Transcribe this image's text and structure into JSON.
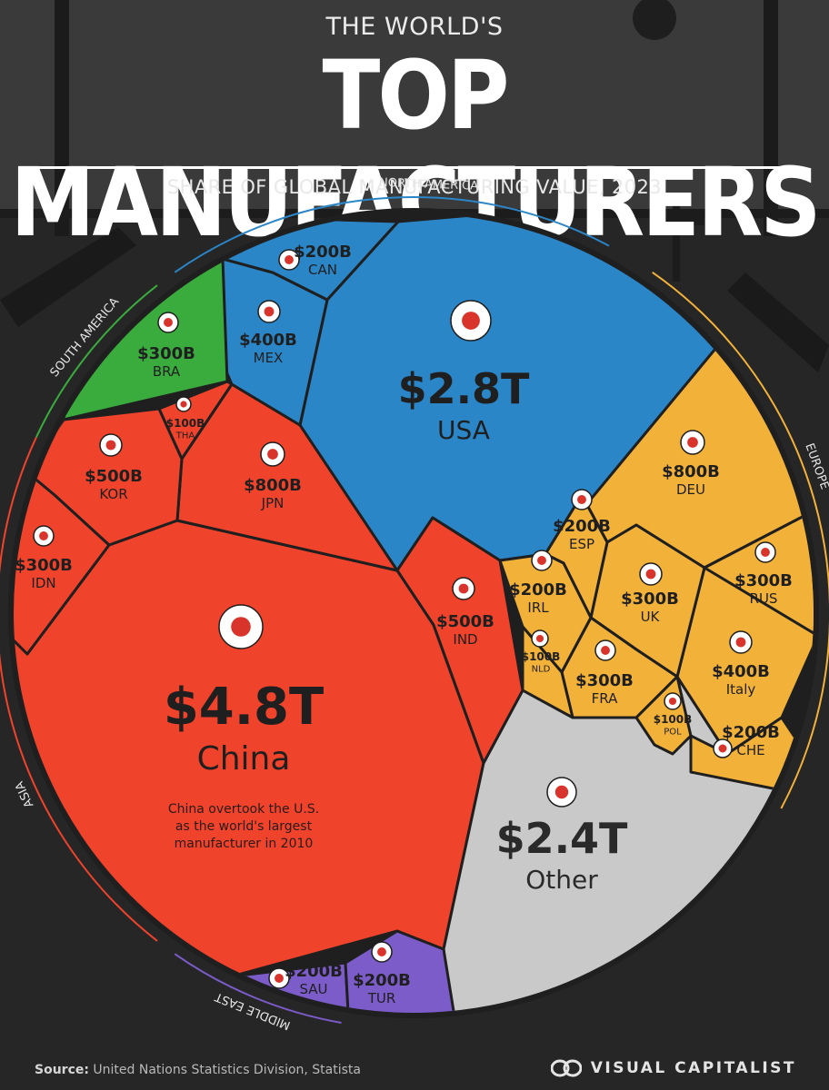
{
  "header": {
    "kicker": "THE WORLD'S",
    "title": "TOP MANUFACTURERS",
    "subtitle": "SHARE OF GLOBAL MANUFACTURING VALUE, 2023"
  },
  "footer": {
    "source_label": "Source:",
    "source_text": "United Nations Statistics Division, Statista",
    "brand": "VISUAL CAPITALIST"
  },
  "colors": {
    "asia": "#f0432c",
    "north_america": "#2b86c8",
    "south_america": "#3aac3e",
    "europe": "#f2b23a",
    "middle_east": "#7b5cc9",
    "other": "#c9c9c9",
    "border": "#1f1f1f",
    "ring": "#2e2e2e"
  },
  "chart_data": {
    "type": "treemap",
    "title": "TOP MANUFACTURERS",
    "subtitle": "SHARE OF GLOBAL MANUFACTURING VALUE, 2023",
    "regions": [
      "NORTH AMERICA",
      "EUROPE",
      "SOUTH AMERICA",
      "ASIA",
      "MIDDLE EAST"
    ],
    "cells": [
      {
        "label": "China",
        "value": "$4.8T",
        "value_num": 4.8,
        "region": "ASIA"
      },
      {
        "label": "USA",
        "value": "$2.8T",
        "value_num": 2.8,
        "region": "NORTH AMERICA"
      },
      {
        "label": "Other",
        "value": "$2.4T",
        "value_num": 2.4,
        "region": "Other"
      },
      {
        "label": "JPN",
        "value": "$800B",
        "value_num": 0.8,
        "region": "ASIA"
      },
      {
        "label": "DEU",
        "value": "$800B",
        "value_num": 0.8,
        "region": "EUROPE"
      },
      {
        "label": "KOR",
        "value": "$500B",
        "value_num": 0.5,
        "region": "ASIA"
      },
      {
        "label": "IND",
        "value": "$500B",
        "value_num": 0.5,
        "region": "ASIA"
      },
      {
        "label": "MEX",
        "value": "$400B",
        "value_num": 0.4,
        "region": "NORTH AMERICA"
      },
      {
        "label": "Italy",
        "value": "$400B",
        "value_num": 0.4,
        "region": "EUROPE"
      },
      {
        "label": "BRA",
        "value": "$300B",
        "value_num": 0.3,
        "region": "SOUTH AMERICA"
      },
      {
        "label": "IDN",
        "value": "$300B",
        "value_num": 0.3,
        "region": "ASIA"
      },
      {
        "label": "UK",
        "value": "$300B",
        "value_num": 0.3,
        "region": "EUROPE"
      },
      {
        "label": "RUS",
        "value": "$300B",
        "value_num": 0.3,
        "region": "EUROPE"
      },
      {
        "label": "FRA",
        "value": "$300B",
        "value_num": 0.3,
        "region": "EUROPE"
      },
      {
        "label": "CAN",
        "value": "$200B",
        "value_num": 0.2,
        "region": "NORTH AMERICA"
      },
      {
        "label": "ESP",
        "value": "$200B",
        "value_num": 0.2,
        "region": "EUROPE"
      },
      {
        "label": "IRL",
        "value": "$200B",
        "value_num": 0.2,
        "region": "EUROPE"
      },
      {
        "label": "CHE",
        "value": "$200B",
        "value_num": 0.2,
        "region": "EUROPE"
      },
      {
        "label": "SAU",
        "value": "$200B",
        "value_num": 0.2,
        "region": "MIDDLE EAST"
      },
      {
        "label": "TUR",
        "value": "$200B",
        "value_num": 0.2,
        "region": "MIDDLE EAST"
      },
      {
        "label": "THA",
        "value": "$100B",
        "value_num": 0.1,
        "region": "ASIA"
      },
      {
        "label": "NLD",
        "value": "$100B",
        "value_num": 0.1,
        "region": "EUROPE"
      },
      {
        "label": "POL",
        "value": "$100B",
        "value_num": 0.1,
        "region": "EUROPE"
      }
    ],
    "annotations": [
      {
        "target": "China",
        "text": [
          "China overtook the U.S.",
          "as the world's largest",
          "manufacturer in 2010"
        ]
      }
    ]
  }
}
